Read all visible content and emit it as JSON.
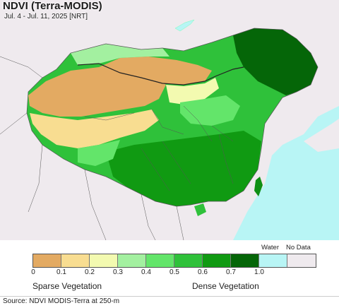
{
  "header": {
    "title": "NDVI (Terra-MODIS)",
    "date_range": "Jul. 4 - Jul. 11, 2025 [NRT]"
  },
  "colors": {
    "land_outside": "#efeaee",
    "ocean": "#b8f5f5",
    "borders": "#555555"
  },
  "legend": {
    "classes": [
      {
        "color": "#e3aa62"
      },
      {
        "color": "#f8dd91"
      },
      {
        "color": "#f3fab0"
      },
      {
        "color": "#a3f0a0"
      },
      {
        "color": "#63e56a"
      },
      {
        "color": "#2fc13a"
      },
      {
        "color": "#109a12"
      },
      {
        "color": "#056608"
      },
      {
        "color": "#b8f5f5"
      },
      {
        "color": "#efeaee"
      }
    ],
    "tick_labels": [
      "0",
      "0.1",
      "0.2",
      "0.3",
      "0.4",
      "0.5",
      "0.6",
      "0.7",
      "1.0"
    ],
    "water_label": "Water",
    "nodata_label": "No Data",
    "sparse_label": "Sparse Vegetation",
    "dense_label": "Dense Vegetation"
  },
  "footer": {
    "source": "Source: NDVI MODIS-Terra at 250-m"
  }
}
